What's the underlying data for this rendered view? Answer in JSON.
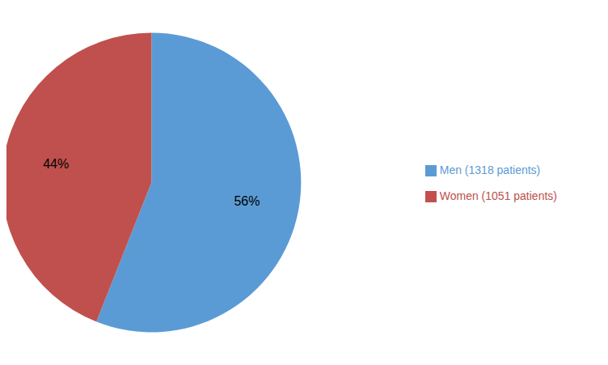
{
  "chart_data": {
    "type": "pie",
    "categories": [
      "Men (1318 patients)",
      "Women (1051 patients)"
    ],
    "values": [
      56,
      44
    ],
    "value_labels": [
      "56%",
      "44%"
    ],
    "colors": [
      "#5b9bd5",
      "#c0504d"
    ],
    "data_labels": true,
    "legend": "right"
  }
}
